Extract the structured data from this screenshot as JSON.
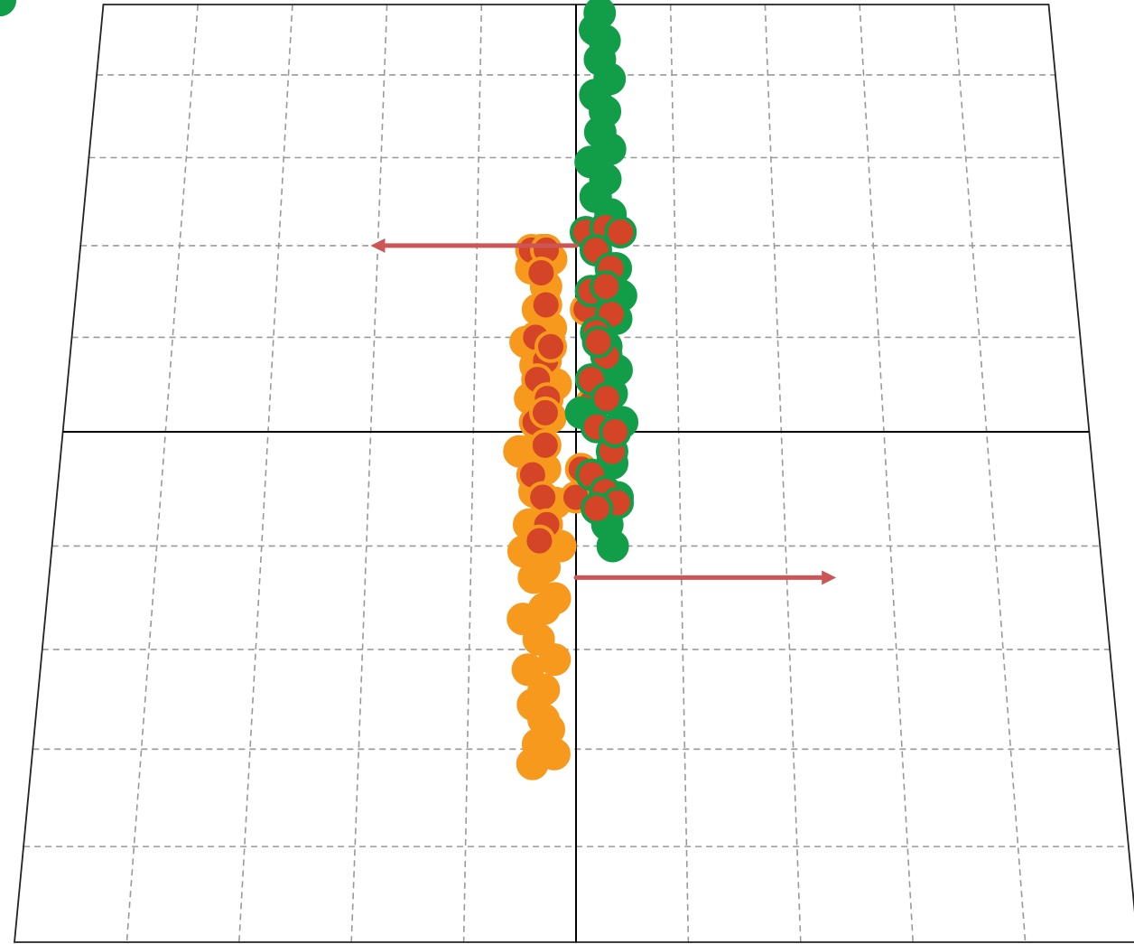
{
  "chart_data": {
    "type": "scatter",
    "projection": "perspective-trapezoid",
    "title": "",
    "xlabel": "",
    "ylabel": "",
    "grid": true,
    "grid_style": "dashed",
    "legend": "none",
    "xlim": [
      -5,
      5
    ],
    "ylim": [
      -5,
      5
    ],
    "x_ticks": [
      -5,
      -4,
      -3,
      -2,
      -1,
      0,
      1,
      2,
      3,
      4,
      5
    ],
    "y_ticks": [
      -5,
      -4,
      -3,
      -2,
      -1,
      0,
      1,
      2,
      3,
      4,
      5
    ],
    "axis_color": "#000000",
    "grid_color": "#999999",
    "series": [
      {
        "color": "#f7991c",
        "edge_color": "#f7991c",
        "points": [
          [
            -0.3,
            -2.7
          ],
          [
            -0.35,
            -2.95
          ],
          [
            -0.4,
            -3.15
          ],
          [
            -0.2,
            -3.05
          ],
          [
            -0.25,
            -2.8
          ],
          [
            -0.3,
            -2.4
          ],
          [
            -0.45,
            -2.2
          ],
          [
            -0.2,
            -2.1
          ],
          [
            -0.35,
            -1.9
          ],
          [
            -0.5,
            -1.7
          ],
          [
            -0.2,
            -1.5
          ],
          [
            -0.4,
            -1.3
          ],
          [
            -0.3,
            -1.2
          ],
          [
            -0.5,
            -1.05
          ],
          [
            -0.15,
            -1.0
          ],
          [
            -0.45,
            -0.8
          ],
          [
            -0.2,
            -0.6
          ],
          [
            -0.4,
            -0.5
          ],
          [
            -0.3,
            -0.3
          ],
          [
            -0.55,
            -0.15
          ],
          [
            -0.35,
            -0.05
          ],
          [
            -0.25,
            0.15
          ],
          [
            -0.45,
            0.35
          ],
          [
            -0.2,
            0.5
          ],
          [
            -0.4,
            0.7
          ],
          [
            -0.3,
            0.85
          ],
          [
            -0.5,
            0.95
          ],
          [
            -0.25,
            1.1
          ],
          [
            -0.38,
            1.3
          ],
          [
            -0.3,
            1.55
          ],
          [
            -0.45,
            1.75
          ],
          [
            -0.25,
            1.85
          ],
          [
            -0.35,
            1.95
          ],
          [
            -0.3,
            -1.6
          ],
          [
            -0.4,
            -2.55
          ]
        ]
      },
      {
        "color": "#d44427",
        "edge_color": "#f7991c",
        "points": [
          [
            -0.45,
            1.95
          ],
          [
            -0.3,
            1.95
          ],
          [
            -0.35,
            1.7
          ],
          [
            -0.3,
            1.35
          ],
          [
            -0.4,
            1.0
          ],
          [
            -0.3,
            0.75
          ],
          [
            -0.38,
            0.55
          ],
          [
            -0.28,
            0.35
          ],
          [
            -0.4,
            0.1
          ],
          [
            -0.3,
            -0.1
          ],
          [
            -0.42,
            -0.35
          ],
          [
            -0.32,
            -0.55
          ],
          [
            -0.28,
            -0.8
          ],
          [
            -0.35,
            -0.95
          ],
          [
            -0.3,
            0.2
          ],
          [
            -0.25,
            0.9
          ],
          [
            0.0,
            -0.55
          ],
          [
            0.05,
            -0.3
          ],
          [
            0.15,
            0.3
          ],
          [
            0.1,
            1.3
          ]
        ]
      },
      {
        "color": "#129e48",
        "edge_color": "#129e48",
        "points": [
          [
            0.3,
            5.4
          ],
          [
            0.25,
            5.1
          ],
          [
            0.25,
            4.85
          ],
          [
            0.2,
            4.6
          ],
          [
            0.3,
            4.45
          ],
          [
            0.25,
            4.2
          ],
          [
            0.35,
            3.95
          ],
          [
            0.2,
            3.75
          ],
          [
            0.3,
            3.55
          ],
          [
            0.25,
            3.3
          ],
          [
            0.35,
            3.1
          ],
          [
            0.15,
            2.95
          ],
          [
            0.3,
            2.75
          ],
          [
            0.2,
            2.55
          ],
          [
            0.35,
            2.35
          ],
          [
            0.25,
            2.15
          ],
          [
            0.4,
            1.75
          ],
          [
            0.45,
            1.45
          ],
          [
            0.4,
            1.2
          ],
          [
            0.3,
            0.9
          ],
          [
            0.4,
            0.65
          ],
          [
            0.35,
            0.4
          ],
          [
            0.45,
            0.1
          ],
          [
            0.35,
            -0.25
          ],
          [
            0.4,
            -0.55
          ],
          [
            0.3,
            -0.8
          ],
          [
            0.35,
            -1.0
          ],
          [
            0.05,
            0.2
          ]
        ]
      },
      {
        "color": "#d44427",
        "edge_color": "#129e48",
        "points": [
          [
            0.1,
            2.15
          ],
          [
            0.3,
            2.2
          ],
          [
            0.45,
            2.15
          ],
          [
            0.2,
            1.95
          ],
          [
            0.35,
            1.75
          ],
          [
            0.15,
            1.5
          ],
          [
            0.35,
            1.25
          ],
          [
            0.2,
            1.05
          ],
          [
            0.3,
            0.8
          ],
          [
            0.15,
            0.55
          ],
          [
            0.3,
            0.35
          ],
          [
            0.2,
            0.05
          ],
          [
            0.35,
            -0.15
          ],
          [
            0.15,
            -0.35
          ],
          [
            0.28,
            -0.5
          ],
          [
            0.4,
            -0.6
          ],
          [
            0.2,
            -0.65
          ],
          [
            0.3,
            1.55
          ],
          [
            0.22,
            0.95
          ],
          [
            0.38,
            0.0
          ]
        ]
      }
    ],
    "arrows": [
      {
        "from": [
          0.0,
          2.0
        ],
        "to": [
          -2.0,
          2.0
        ],
        "color": "#cc5555"
      },
      {
        "from": [
          0.0,
          -1.3
        ],
        "to": [
          2.4,
          -1.3
        ],
        "color": "#cc5555"
      }
    ]
  }
}
